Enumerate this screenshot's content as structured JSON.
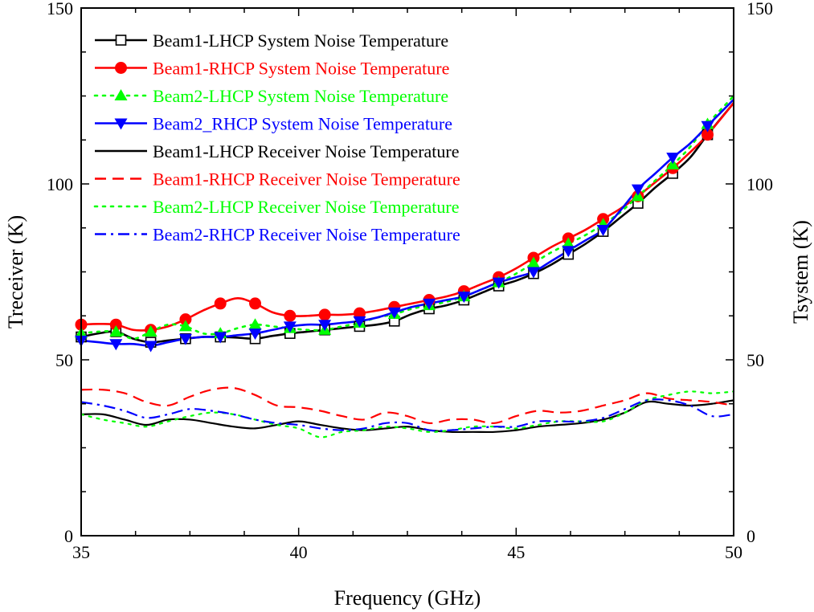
{
  "chart_data": {
    "type": "line",
    "title": "",
    "xlabel": "Frequency (GHz)",
    "ylabel": "Treceiver (K)",
    "y2label": "Tsystem (K)",
    "xlim": [
      35,
      50
    ],
    "ylim": [
      0,
      150
    ],
    "y2lim": [
      0,
      150
    ],
    "x_ticks": [
      35,
      40,
      45,
      50
    ],
    "y_ticks": [
      0,
      50,
      100,
      150
    ],
    "y2_ticks": [
      0,
      50,
      100,
      150
    ],
    "grid": false,
    "legend_position": "top-left",
    "series": [
      {
        "name": "Beam1-LHCP System Noise Temperature",
        "axis": "right",
        "color": "#000000",
        "dash": "solid",
        "marker": "square-open",
        "x": [
          35,
          35.4,
          35.8,
          36.2,
          36.6,
          37.0,
          37.4,
          37.8,
          38.2,
          38.6,
          39.0,
          39.4,
          39.8,
          40.2,
          40.6,
          41.0,
          41.4,
          41.8,
          42.2,
          42.6,
          43.0,
          43.4,
          43.8,
          44.2,
          44.6,
          45.0,
          45.4,
          45.8,
          46.2,
          46.6,
          47.0,
          47.4,
          47.8,
          48.2,
          48.6,
          49.0,
          49.4,
          50
        ],
        "y": [
          56.5,
          57.5,
          58,
          56,
          55,
          55.5,
          56,
          56.5,
          56.5,
          56.3,
          56,
          56.8,
          57.5,
          58,
          58.5,
          59,
          59.5,
          60,
          61,
          63,
          64.5,
          65.5,
          67,
          69,
          71,
          72.5,
          74.5,
          77,
          80,
          83,
          86.5,
          90.5,
          94.5,
          99,
          103,
          107.5,
          114,
          123
        ],
        "marker_x": [
          35,
          35.8,
          36.6,
          37.4,
          38.2,
          39.0,
          39.8,
          40.6,
          41.4,
          42.2,
          43.0,
          43.8,
          44.6,
          45.4,
          46.2,
          47.0,
          47.8,
          48.6,
          49.4
        ]
      },
      {
        "name": "Beam1-RHCP System Noise Temperature",
        "axis": "right",
        "color": "#ff0000",
        "dash": "solid",
        "marker": "circle-filled",
        "x": [
          35,
          35.4,
          35.8,
          36.2,
          36.6,
          37.0,
          37.4,
          37.8,
          38.2,
          38.6,
          39.0,
          39.4,
          39.8,
          40.2,
          40.6,
          41.0,
          41.4,
          41.8,
          42.2,
          42.6,
          43.0,
          43.4,
          43.8,
          44.2,
          44.6,
          45.0,
          45.4,
          45.8,
          46.2,
          46.6,
          47.0,
          47.4,
          47.8,
          48.2,
          48.6,
          49.0,
          49.4,
          50
        ],
        "y": [
          60,
          60.2,
          60,
          58.5,
          58.5,
          59.5,
          61.5,
          64,
          66,
          67.5,
          66,
          63.5,
          62.5,
          62.5,
          62.8,
          62.8,
          63.2,
          64,
          65,
          66,
          67,
          68,
          69.5,
          71.5,
          73.5,
          76,
          79,
          82,
          84.5,
          87,
          90,
          93,
          96.5,
          100.5,
          104.5,
          109,
          114,
          123
        ],
        "marker_x": [
          35,
          35.8,
          36.6,
          37.4,
          38.2,
          39.0,
          39.8,
          40.6,
          41.4,
          42.2,
          43.0,
          43.8,
          44.6,
          45.4,
          46.2,
          47.0,
          47.8,
          48.6,
          49.4
        ]
      },
      {
        "name": "Beam2-LHCP System Noise Temperature",
        "axis": "right",
        "color": "#00ff00",
        "dash": "dotted",
        "marker": "triangle-up-filled",
        "x": [
          35,
          35.4,
          35.8,
          36.2,
          36.6,
          37.0,
          37.4,
          37.8,
          38.2,
          38.6,
          39.0,
          39.4,
          39.8,
          40.2,
          40.6,
          41.0,
          41.4,
          41.8,
          42.2,
          42.6,
          43.0,
          43.4,
          43.8,
          44.2,
          44.6,
          45.0,
          45.4,
          45.8,
          46.2,
          46.6,
          47.0,
          47.4,
          47.8,
          48.2,
          48.6,
          49.0,
          49.4,
          50
        ],
        "y": [
          57.5,
          58,
          58,
          56,
          58,
          60,
          59.5,
          57.5,
          57.5,
          59,
          60,
          59.5,
          59,
          58.5,
          58.5,
          59.5,
          60.5,
          62,
          63,
          64.5,
          65.5,
          66.5,
          68,
          70,
          72,
          74.5,
          77.5,
          80.5,
          83,
          85.5,
          88.5,
          92,
          96.5,
          101,
          105.5,
          110.5,
          117,
          125
        ],
        "marker_x": [
          35,
          35.8,
          36.6,
          37.4,
          38.2,
          39.0,
          39.8,
          40.6,
          41.4,
          42.2,
          43.0,
          43.8,
          44.6,
          45.4,
          46.2,
          47.0,
          47.8,
          48.6,
          49.4
        ]
      },
      {
        "name": "Beam2_RHCP System Noise Temperature",
        "axis": "right",
        "color": "#0000ff",
        "dash": "solid",
        "marker": "triangle-down-filled",
        "x": [
          35,
          35.4,
          35.8,
          36.2,
          36.6,
          37.0,
          37.4,
          37.8,
          38.2,
          38.6,
          39.0,
          39.4,
          39.8,
          40.2,
          40.6,
          41.0,
          41.4,
          41.8,
          42.2,
          42.6,
          43.0,
          43.4,
          43.8,
          44.2,
          44.6,
          45.0,
          45.4,
          45.8,
          46.2,
          46.6,
          47.0,
          47.4,
          47.8,
          48.2,
          48.6,
          49.0,
          49.4,
          50
        ],
        "y": [
          55.5,
          55,
          54.5,
          54.5,
          54,
          55,
          56,
          56.5,
          56.5,
          57,
          57.5,
          58.5,
          59.5,
          60,
          60,
          60.5,
          61,
          62,
          63.5,
          65,
          66,
          67,
          68,
          70,
          72,
          73.5,
          75,
          78,
          81,
          84,
          87,
          92.5,
          98.5,
          103,
          107.5,
          111.5,
          116.5,
          124
        ],
        "marker_x": [
          35,
          35.8,
          36.6,
          37.4,
          38.2,
          39.0,
          39.8,
          40.6,
          41.4,
          42.2,
          43.0,
          43.8,
          44.6,
          45.4,
          46.2,
          47.0,
          47.8,
          48.6,
          49.4
        ]
      },
      {
        "name": "Beam1-LHCP Receiver Noise Temperature",
        "axis": "left",
        "color": "#000000",
        "dash": "solid",
        "marker": "none",
        "x": [
          35,
          35.5,
          36,
          36.5,
          37,
          37.5,
          38,
          38.5,
          39,
          39.5,
          40,
          40.5,
          41,
          41.5,
          42,
          42.5,
          43,
          43.5,
          44,
          44.5,
          45,
          45.5,
          46,
          46.5,
          47,
          47.5,
          48,
          48.5,
          49,
          49.5,
          50
        ],
        "y": [
          34.5,
          34.5,
          33,
          31.5,
          33,
          33,
          32,
          31,
          30.5,
          31.5,
          32.5,
          31.5,
          30.5,
          30,
          30.5,
          31,
          30,
          29.5,
          29.5,
          29.5,
          30,
          31,
          31.5,
          32,
          33,
          35,
          38,
          37.5,
          37,
          37.5,
          38.5
        ]
      },
      {
        "name": "Beam1-RHCP Receiver Noise Temperature",
        "axis": "left",
        "color": "#ff0000",
        "dash": "dashed",
        "marker": "none",
        "x": [
          35,
          35.5,
          36,
          36.5,
          37,
          37.5,
          38,
          38.5,
          39,
          39.5,
          40,
          40.5,
          41,
          41.5,
          42,
          42.5,
          43,
          43.5,
          44,
          44.5,
          45,
          45.5,
          46,
          46.5,
          47,
          47.5,
          48,
          48.5,
          49,
          49.5,
          50
        ],
        "y": [
          41.5,
          41.5,
          40.5,
          38,
          37,
          39.5,
          41.5,
          42,
          40,
          37,
          36.5,
          35.5,
          34,
          33,
          35,
          34,
          32,
          33,
          33,
          32,
          34,
          35.5,
          35,
          35.5,
          37,
          38.5,
          40.5,
          39,
          38.5,
          38,
          37
        ]
      },
      {
        "name": "Beam2-LHCP Receiver Noise Temperature",
        "axis": "left",
        "color": "#00ff00",
        "dash": "dotted",
        "marker": "none",
        "x": [
          35,
          35.5,
          36,
          36.5,
          37,
          37.5,
          38,
          38.5,
          39,
          39.5,
          40,
          40.5,
          41,
          41.5,
          42,
          42.5,
          43,
          43.5,
          44,
          44.5,
          45,
          45.5,
          46,
          46.5,
          47,
          47.5,
          48,
          48.5,
          49,
          49.5,
          50
        ],
        "y": [
          34.5,
          33,
          32,
          31,
          32.5,
          34,
          35,
          34.5,
          33,
          31.5,
          30.5,
          28,
          29.5,
          30,
          31,
          30.5,
          29.5,
          30,
          31,
          31,
          30.5,
          31.5,
          32.5,
          32.5,
          32.5,
          35,
          38.5,
          40,
          41,
          40.5,
          41
        ]
      },
      {
        "name": "Beam2-RHCP Receiver Noise Temperature",
        "axis": "left",
        "color": "#0000ff",
        "dash": "dashdot",
        "marker": "none",
        "x": [
          35,
          35.5,
          36,
          36.5,
          37,
          37.5,
          38,
          38.5,
          39,
          39.5,
          40,
          40.5,
          41,
          41.5,
          42,
          42.5,
          43,
          43.5,
          44,
          44.5,
          45,
          45.5,
          46,
          46.5,
          47,
          47.5,
          48,
          48.5,
          49,
          49.5,
          50
        ],
        "y": [
          38,
          37,
          35.5,
          33.5,
          34.5,
          36,
          35.5,
          34.5,
          33,
          32,
          31.5,
          30.5,
          30,
          30.5,
          32,
          32,
          30,
          30,
          30.5,
          31,
          31,
          32.5,
          32.5,
          32.5,
          33.5,
          36,
          38.5,
          38.5,
          37,
          34,
          34.5
        ]
      }
    ]
  }
}
